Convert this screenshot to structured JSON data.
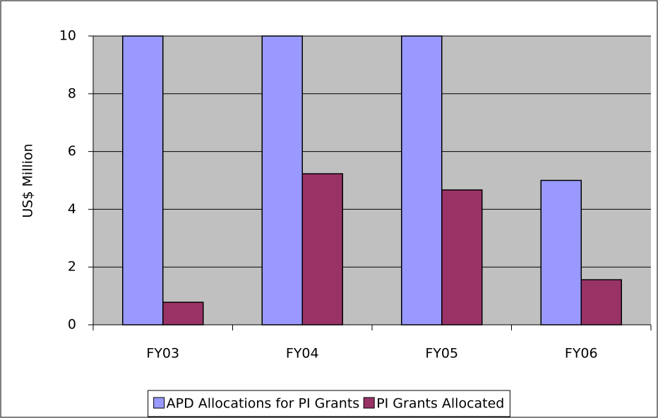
{
  "chart_data": {
    "type": "bar",
    "ylabel": "US$ Million",
    "categories": [
      "FY03",
      "FY04",
      "FY05",
      "FY06"
    ],
    "series": [
      {
        "name": "APD Allocations for PI Grants",
        "color": "#9999ff",
        "values": [
          10,
          10,
          10,
          5
        ]
      },
      {
        "name": "PI Grants Allocated",
        "color": "#993366",
        "values": [
          0.78,
          5.23,
          4.67,
          1.56
        ]
      }
    ],
    "ylim": [
      0,
      10
    ],
    "yticks": [
      0,
      2,
      4,
      6,
      8,
      10
    ],
    "grid": true,
    "legend": "bottom"
  }
}
